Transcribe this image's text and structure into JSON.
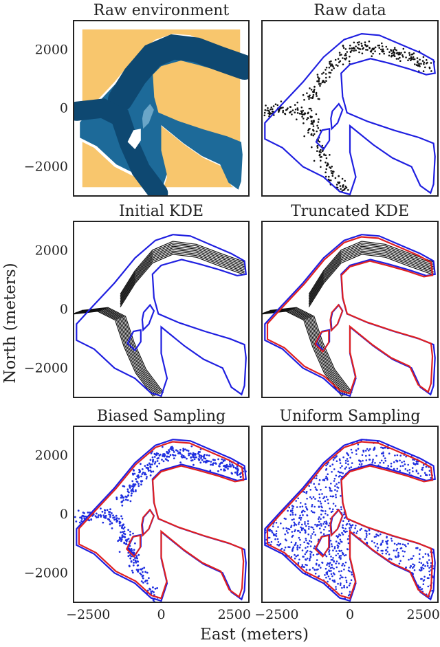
{
  "chart_data": {
    "type": "scatter",
    "layout": "3x2 grid of panels",
    "xlabel": "East (meters)",
    "ylabel": "North (meters)",
    "xlim": [
      -3000,
      3000
    ],
    "ylim": [
      -3000,
      3000
    ],
    "x_ticks": [
      -2500,
      0,
      2500
    ],
    "x_tick_labels": [
      "−2500",
      "0",
      "2500"
    ],
    "y_ticks": [
      2000,
      0,
      -2000
    ],
    "y_tick_labels": [
      "2000",
      "0",
      "−2000"
    ],
    "colors": {
      "land": "#f8c66d",
      "water_dark": "#0e4871",
      "water_mid": "#1d6a99",
      "water_light": "#6aa6c8",
      "outer_boundary": "#1f1fe0",
      "truncated_boundary": "#e02020",
      "raw_points": "#111111",
      "sample_points": "#1f2fe0",
      "kde_contours": "#111111"
    },
    "panels": [
      {
        "id": "raw-environment",
        "title": "Raw environment",
        "content": "filled contour map of river channel"
      },
      {
        "id": "raw-data",
        "title": "Raw data",
        "content": "black observation points inside blue channel boundary"
      },
      {
        "id": "initial-kde",
        "title": "Initial KDE",
        "content": "black KDE contour lines with blue boundary"
      },
      {
        "id": "truncated-kde",
        "title": "Truncated KDE",
        "content": "black KDE contour lines with blue and red boundaries"
      },
      {
        "id": "biased-sampling",
        "title": "Biased Sampling",
        "content": "blue samples concentrated along channel"
      },
      {
        "id": "uniform-sampling",
        "title": "Uniform Sampling",
        "content": "blue samples spread uniformly in channel"
      }
    ]
  }
}
